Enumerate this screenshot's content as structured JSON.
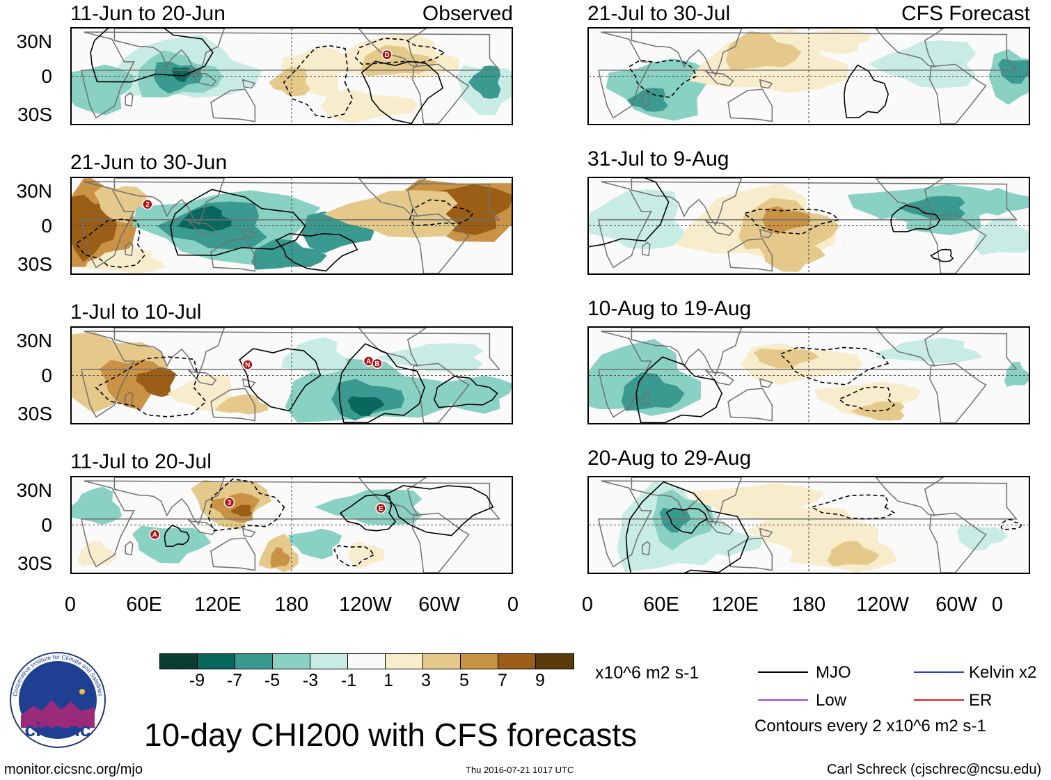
{
  "panels_left": [
    {
      "title": "11-Jun to 20-Jun",
      "tag": "Observed"
    },
    {
      "title": "21-Jun to 30-Jun",
      "tag": ""
    },
    {
      "title": "1-Jul to 10-Jul",
      "tag": ""
    },
    {
      "title": "11-Jul to 20-Jul",
      "tag": ""
    }
  ],
  "panels_right": [
    {
      "title": "21-Jul to 30-Jul",
      "tag": "CFS Forecast"
    },
    {
      "title": "31-Jul to 9-Aug",
      "tag": ""
    },
    {
      "title": "10-Aug to 19-Aug",
      "tag": ""
    },
    {
      "title": "20-Aug to 29-Aug",
      "tag": ""
    }
  ],
  "lat_labels": [
    "30N",
    "0",
    "30S"
  ],
  "lon_labels": [
    "0",
    "60E",
    "120E",
    "180",
    "120W",
    "60W",
    "0"
  ],
  "colorbar": {
    "colors": [
      "#0b3d33",
      "#08685e",
      "#3a9a8f",
      "#88d1c3",
      "#c8ece3",
      "#f8f8f8",
      "#f7eccb",
      "#e4c98a",
      "#c99244",
      "#9a5e16",
      "#5b3a0a"
    ],
    "labels": [
      "-9",
      "-7",
      "-5",
      "-3",
      "-1",
      "1",
      "3",
      "5",
      "7",
      "9"
    ],
    "units": "x10^6 m2 s-1"
  },
  "legend": {
    "items": [
      {
        "label": "MJO",
        "color": "#000000"
      },
      {
        "label": "Kelvin x2",
        "color": "#2a3ad6"
      },
      {
        "label": "Low",
        "color": "#a040e0"
      },
      {
        "label": "ER",
        "color": "#e01818"
      }
    ],
    "note": "Contours every 2 x10^6 m2 s-1"
  },
  "title": "10-day CHI200 with CFS forecasts",
  "logo_text": "cics.nc",
  "logo_ring_text": "Cooperative Institute for Climate and Satellites",
  "footer": {
    "left": "monitor.cicsnc.org/mjo",
    "center": "Thu 2016-07-21 1017 UTC",
    "right": "Carl Schreck (cjschrec@ncsu.edu)"
  },
  "storm_markers": [
    {
      "panel": 0,
      "label": "D",
      "lon": 258,
      "lat": 18
    },
    {
      "panel": 1,
      "label": "2",
      "lon": 62,
      "lat": 18
    },
    {
      "panel": 2,
      "label": "N",
      "lon": 144,
      "lat": 9
    },
    {
      "panel": 2,
      "label": "A",
      "lon": 243,
      "lat": 12
    },
    {
      "panel": 2,
      "label": "B",
      "lon": 250,
      "lat": 10
    },
    {
      "panel": 3,
      "label": "3",
      "lon": 129,
      "lat": 19
    },
    {
      "panel": 3,
      "label": "E",
      "lon": 253,
      "lat": 14
    },
    {
      "panel": 3,
      "label": "A",
      "lon": 68,
      "lat": -8
    }
  ]
}
